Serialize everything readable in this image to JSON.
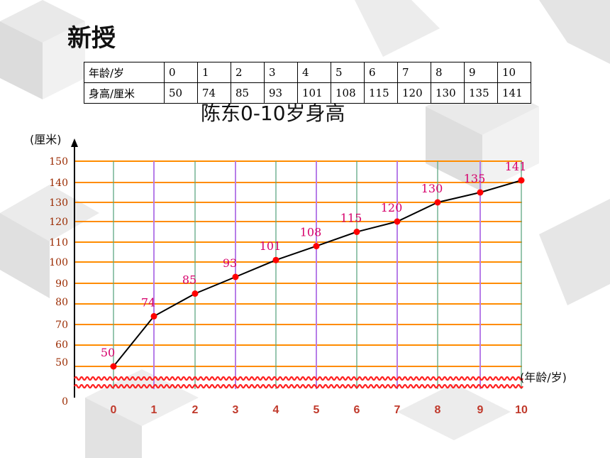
{
  "heading": "新授",
  "table": {
    "row1_label": "年龄/岁",
    "row2_label": "身高/厘米",
    "ages": [
      "0",
      "1",
      "2",
      "3",
      "4",
      "5",
      "6",
      "7",
      "8",
      "9",
      "10"
    ],
    "heights": [
      "50",
      "74",
      "85",
      "93",
      "101",
      "108",
      "115",
      "120",
      "130",
      "135",
      "141"
    ]
  },
  "chart_data": {
    "type": "line",
    "title": "陈东0-10岁身高",
    "ylabel": "(厘米)",
    "xlabel": "(年龄/岁)",
    "x": [
      0,
      1,
      2,
      3,
      4,
      5,
      6,
      7,
      8,
      9,
      10
    ],
    "y_ticks": [
      0,
      50,
      60,
      70,
      80,
      90,
      100,
      110,
      120,
      130,
      140,
      150
    ],
    "ylim": [
      0,
      150
    ],
    "axis_break": true,
    "grid": true,
    "series": [
      {
        "values": [
          50,
          74,
          85,
          93,
          101,
          108,
          115,
          120,
          130,
          135,
          141
        ]
      }
    ],
    "colors": {
      "h_grid": "#ff8c00",
      "v_grid_even": "#5fa883",
      "v_grid_odd": "#b77de8",
      "line": "#000000",
      "point": "#ff0000",
      "data_label": "#d6006b",
      "tick_label": "#9a2a00",
      "x_tick_label": "#c0392b",
      "break_symbol": "#ff2020"
    }
  }
}
